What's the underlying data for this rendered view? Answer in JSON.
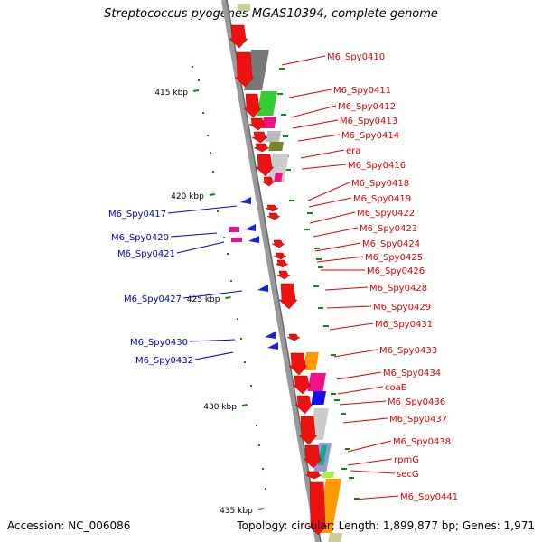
{
  "title": "Streptococcus pyogenes MGAS10394, complete genome",
  "accession": "Accession: NC_006086",
  "summary": "Topology: circular; Length: 1,899,877 bp; Genes: 1,971",
  "colors": {
    "forward_gene": "#ee1111",
    "reverse_gene": "#1122ee",
    "forward_label": "#dd0000",
    "reverse_label": "#0000cc",
    "ruler_tick": "#118811",
    "backbone": "#888888"
  },
  "kbp_ticks": [
    "415 kbp",
    "420 kbp",
    "425 kbp",
    "430 kbp",
    "435 kbp"
  ],
  "forward_genes": [
    "M6_Spy0410",
    "M6_Spy0411",
    "M6_Spy0412",
    "M6_Spy0413",
    "M6_Spy0414",
    "era",
    "M6_Spy0416",
    "M6_Spy0418",
    "M6_Spy0419",
    "M6_Spy0422",
    "M6_Spy0423",
    "M6_Spy0424",
    "M6_Spy0425",
    "M6_Spy0426",
    "M6_Spy0428",
    "M6_Spy0429",
    "M6_Spy0431",
    "M6_Spy0433",
    "M6_Spy0434",
    "coaE",
    "M6_Spy0436",
    "M6_Spy0437",
    "M6_Spy0438",
    "rpmG",
    "secG",
    "M6_Spy0441"
  ],
  "reverse_genes": [
    "M6_Spy0417",
    "M6_Spy0420",
    "M6_Spy0421",
    "M6_Spy0427",
    "M6_Spy0430",
    "M6_Spy0432"
  ]
}
